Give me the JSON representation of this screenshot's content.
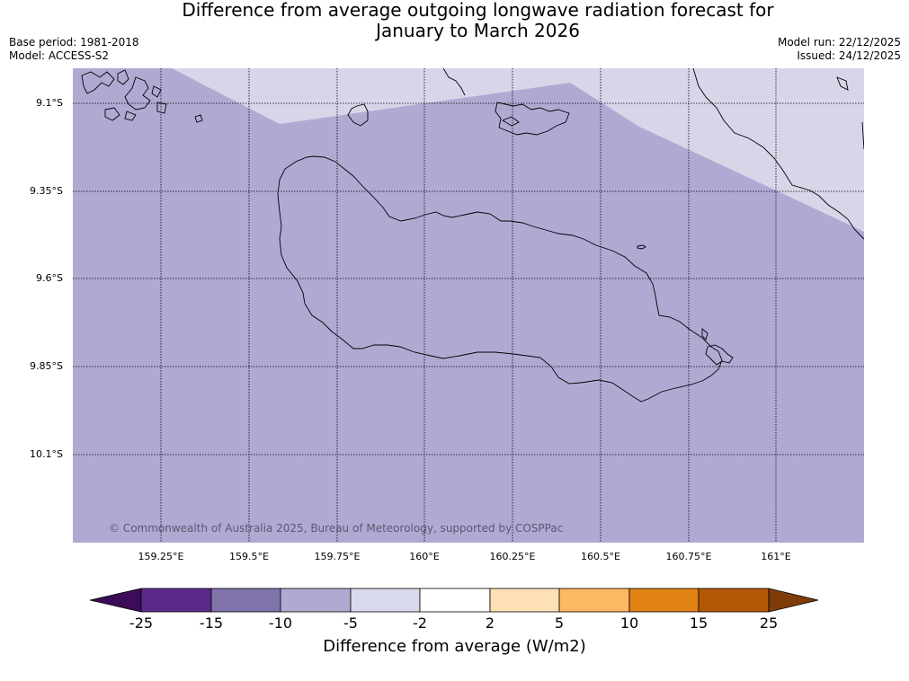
{
  "title": {
    "line1": "Difference from average outgoing longwave radiation forecast for",
    "line2": "January to March 2026"
  },
  "meta": {
    "base_period": "Base period: 1981-2018",
    "model": "Model: ACCESS-S2",
    "model_run": "Model run: 22/12/2025",
    "issued": "Issued: 24/12/2025"
  },
  "map": {
    "copyright": "© Commonwealth of Australia 2025, Bureau of Meteorology, supported by COSPPac",
    "lat_labels": [
      "9.1°S",
      "9.35°S",
      "9.6°S",
      "9.85°S",
      "10.1°S"
    ],
    "lon_labels": [
      "159.25°E",
      "159.5°E",
      "159.75°E",
      "160°E",
      "160.25°E",
      "160.5°E",
      "160.75°E",
      "161°E"
    ],
    "colors": {
      "class_-10_-5": "#b0aad3",
      "class_-5_-2": "#d7d6e9"
    }
  },
  "colorbar": {
    "label": "Difference from average (W/m2)",
    "ticks": [
      "-25",
      "-15",
      "-10",
      "-5",
      "-2",
      "2",
      "5",
      "10",
      "15",
      "25"
    ],
    "colors": [
      "#3b0c58",
      "#5a2a8a",
      "#8073ac",
      "#b0aad3",
      "#d8daeb",
      "#ffffff",
      "#fee0b6",
      "#fdb863",
      "#e08214",
      "#b35806",
      "#7f3b08"
    ]
  }
}
